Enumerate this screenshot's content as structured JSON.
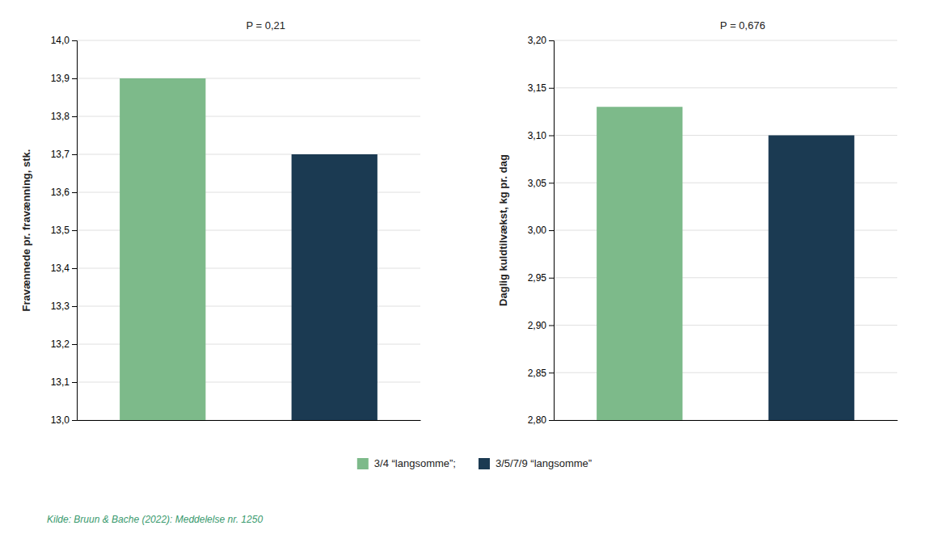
{
  "chart_data": [
    {
      "type": "bar",
      "y_label": "Fravænnede pr. fravænning, stk.",
      "categories": [
        null
      ],
      "series": [
        {
          "name": "3/4 “langsomme”;",
          "color": "#7dba8a",
          "values": [
            13.9
          ]
        },
        {
          "name": "3/5/7/9 “langsomme”",
          "color": "#1b3a52",
          "values": [
            13.7
          ]
        }
      ],
      "ylim": [
        13.0,
        14.0
      ],
      "yticks": [
        {
          "value": 13.0,
          "label": "13,0"
        },
        {
          "value": 13.1,
          "label": "13,1"
        },
        {
          "value": 13.2,
          "label": "13,2"
        },
        {
          "value": 13.3,
          "label": "13,3"
        },
        {
          "value": 13.4,
          "label": "13,4"
        },
        {
          "value": 13.5,
          "label": "13,5"
        },
        {
          "value": 13.6,
          "label": "13,6"
        },
        {
          "value": 13.7,
          "label": "13,7"
        },
        {
          "value": 13.8,
          "label": "13,8"
        },
        {
          "value": 13.9,
          "label": "13,9"
        },
        {
          "value": 14.0,
          "label": "14,0"
        }
      ],
      "grid": true,
      "legend": "bottom",
      "tick_labels": "y",
      "annotations": [
        "P = 0,21",
        "Kilde: Bruun & Bache (2022): Meddelelse nr. 1250"
      ]
    },
    {
      "type": "bar",
      "y_label": "Daglig kuldtilvækst, kg pr. dag",
      "categories": [
        null
      ],
      "series": [
        {
          "name": "3/4 “langsomme”;",
          "color": "#7dba8a",
          "values": [
            3.13
          ]
        },
        {
          "name": "3/5/7/9 “langsomme”",
          "color": "#1b3a52",
          "values": [
            3.1
          ]
        }
      ],
      "ylim": [
        2.8,
        3.2
      ],
      "yticks": [
        {
          "value": 2.8,
          "label": "2,80"
        },
        {
          "value": 2.85,
          "label": "2,85"
        },
        {
          "value": 2.9,
          "label": "2,90"
        },
        {
          "value": 2.95,
          "label": "2,95"
        },
        {
          "value": 3.0,
          "label": "3,00"
        },
        {
          "value": 3.05,
          "label": "3,05"
        },
        {
          "value": 3.1,
          "label": "3,10"
        },
        {
          "value": 3.15,
          "label": "3,15"
        },
        {
          "value": 3.2,
          "label": "3,20"
        }
      ],
      "grid": true,
      "tick_labels": "y",
      "annotations": [
        "P = 0,676"
      ]
    }
  ]
}
